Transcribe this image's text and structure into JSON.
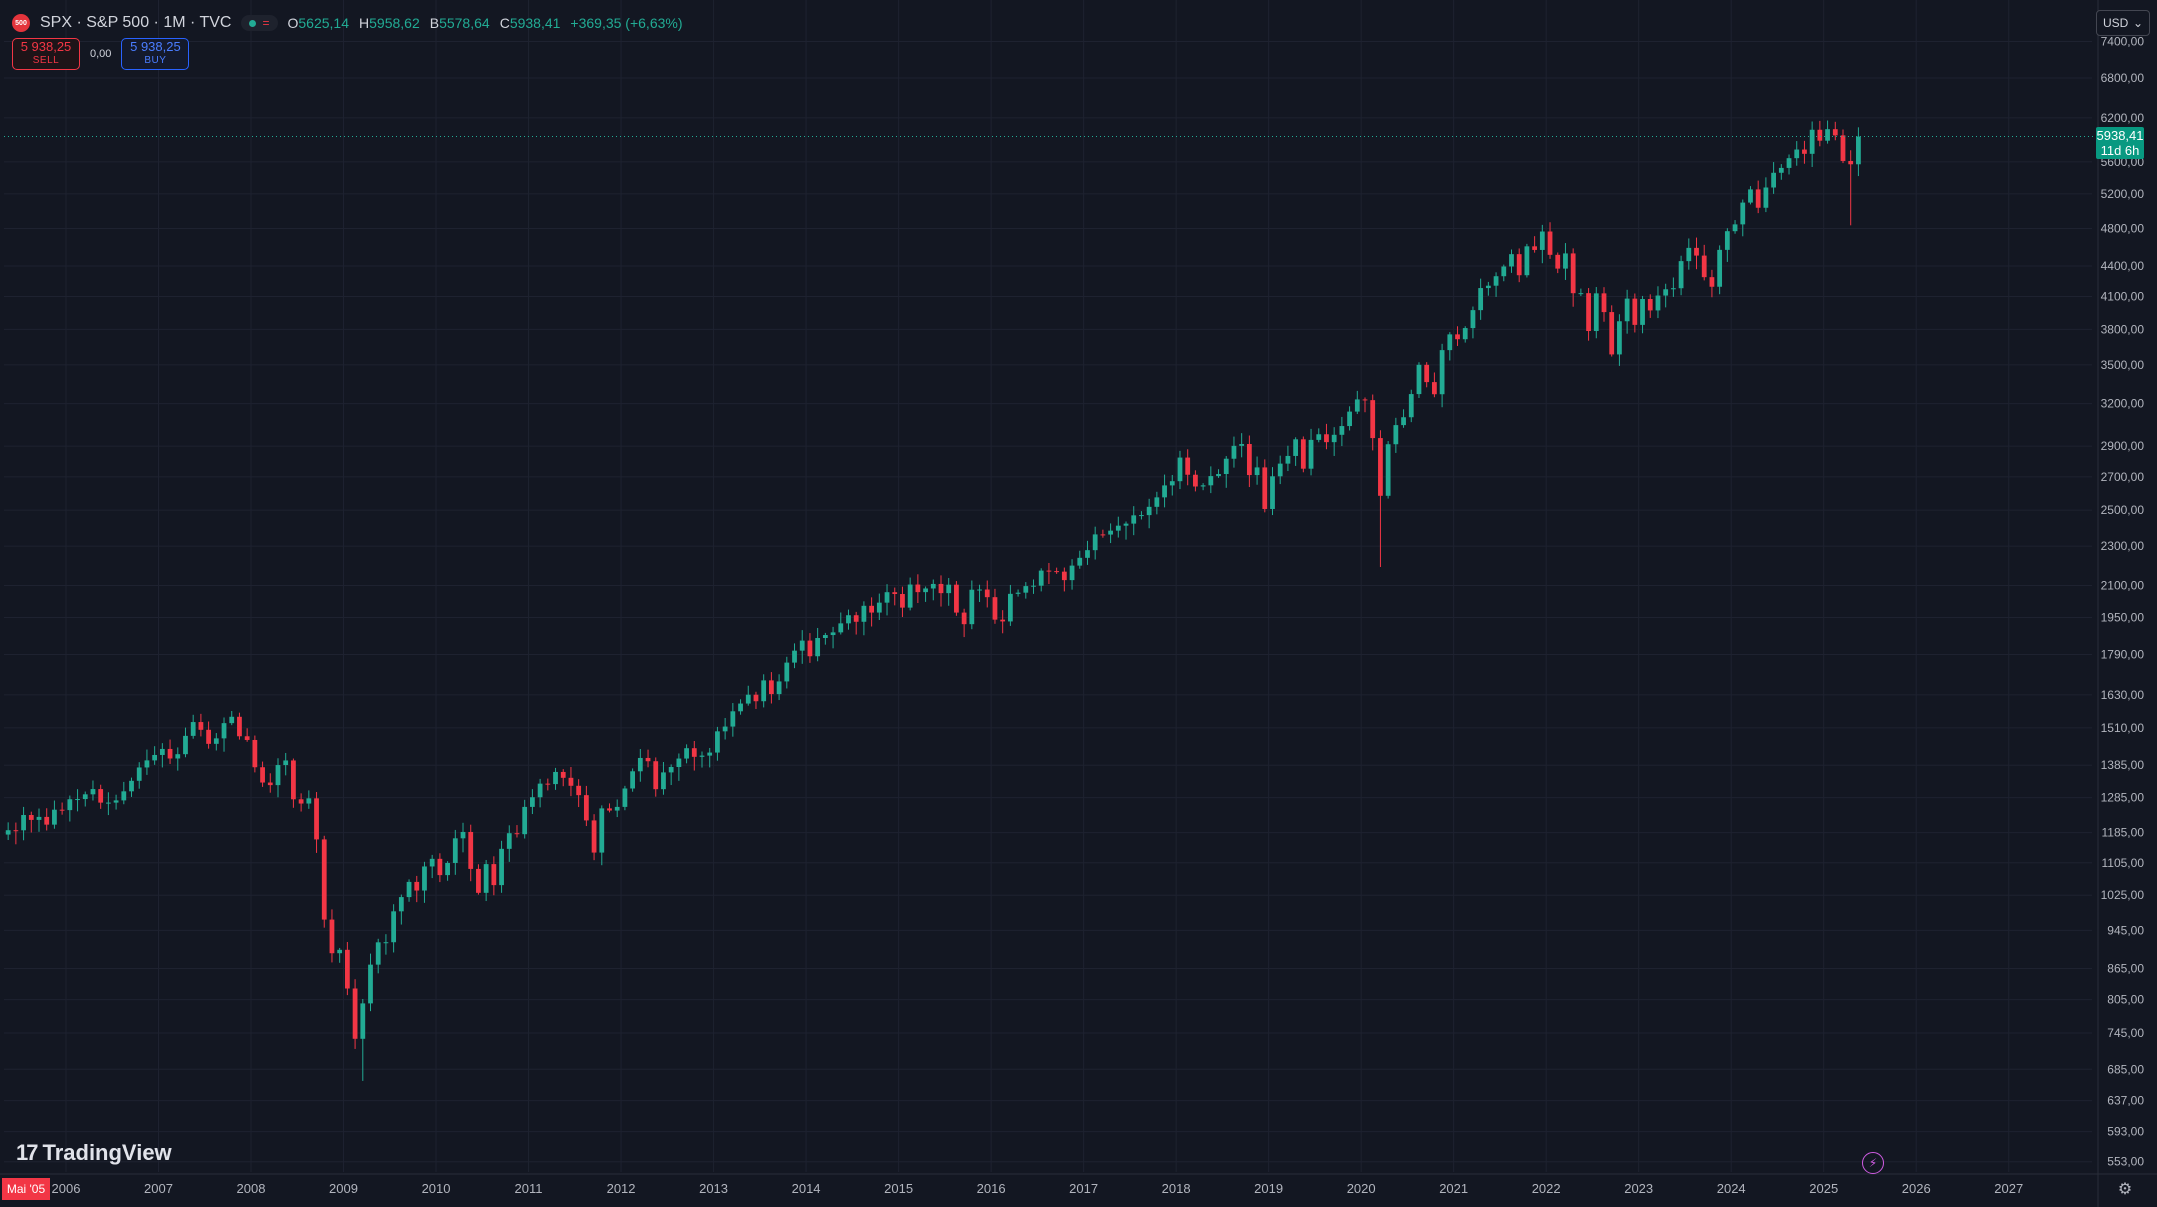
{
  "header": {
    "symbol_badge": "500",
    "title": "SPX · S&P 500 · 1M · TVC",
    "ohlc": [
      {
        "key": "O",
        "value": "5625,14"
      },
      {
        "key": "H",
        "value": "5958,62"
      },
      {
        "key": "B",
        "value": "5578,64"
      },
      {
        "key": "C",
        "value": "5938,41"
      }
    ],
    "change": "+369,35 (+6,63%)"
  },
  "trade": {
    "sell_price": "5 938,25",
    "sell_label": "SELL",
    "spread": "0,00",
    "buy_price": "5 938,25",
    "buy_label": "BUY"
  },
  "currency_button": "USD",
  "last_price_label": {
    "price": "5938,41",
    "countdown": "11d 6h"
  },
  "first_date_label": "Mai '05",
  "brand": "TradingView",
  "colors": {
    "background": "#131722",
    "up": "#22ab94",
    "down": "#f23645",
    "grid": "#1e2230",
    "axis_text": "#b2b5be",
    "price_line": "#22ab94"
  },
  "chart_data": {
    "type": "candlestick",
    "interval": "1M",
    "y_scale": "log",
    "ylim": [
      540,
      7600
    ],
    "x_range": [
      2005.33,
      2027.9
    ],
    "y_ticks": [
      "553,00",
      "593,00",
      "637,00",
      "685,00",
      "745,00",
      "805,00",
      "865,00",
      "945,00",
      "1025,00",
      "1105,00",
      "1185,00",
      "1285,00",
      "1385,00",
      "1510,00",
      "1630,00",
      "1790,00",
      "1950,00",
      "2100,00",
      "2300,00",
      "2500,00",
      "2700,00",
      "2900,00",
      "3200,00",
      "3500,00",
      "3800,00",
      "4100,00",
      "4400,00",
      "4800,00",
      "5200,00",
      "5600,00",
      "6200,00",
      "6800,00",
      "7400,00"
    ],
    "x_ticks": [
      "2006",
      "2007",
      "2008",
      "2009",
      "2010",
      "2011",
      "2012",
      "2013",
      "2014",
      "2015",
      "2016",
      "2017",
      "2018",
      "2019",
      "2020",
      "2021",
      "2022",
      "2023",
      "2024",
      "2025",
      "2026",
      "2027"
    ],
    "last_close": 5938.41,
    "monthly_closes": [
      {
        "date": "2005-05",
        "close": 1191.5
      },
      {
        "date": "2005-06",
        "close": 1191.3
      },
      {
        "date": "2005-07",
        "close": 1234.2
      },
      {
        "date": "2005-08",
        "close": 1220.3
      },
      {
        "date": "2005-09",
        "close": 1228.8
      },
      {
        "date": "2005-10",
        "close": 1207.0
      },
      {
        "date": "2005-11",
        "close": 1249.5
      },
      {
        "date": "2005-12",
        "close": 1248.3
      },
      {
        "date": "2006-01",
        "close": 1280.1
      },
      {
        "date": "2006-02",
        "close": 1280.7
      },
      {
        "date": "2006-03",
        "close": 1294.8
      },
      {
        "date": "2006-04",
        "close": 1310.6
      },
      {
        "date": "2006-05",
        "close": 1270.1
      },
      {
        "date": "2006-06",
        "close": 1270.2
      },
      {
        "date": "2006-07",
        "close": 1276.7
      },
      {
        "date": "2006-08",
        "close": 1303.8
      },
      {
        "date": "2006-09",
        "close": 1335.9
      },
      {
        "date": "2006-10",
        "close": 1377.9
      },
      {
        "date": "2006-11",
        "close": 1400.6
      },
      {
        "date": "2006-12",
        "close": 1418.3
      },
      {
        "date": "2007-01",
        "close": 1438.2
      },
      {
        "date": "2007-02",
        "close": 1406.8
      },
      {
        "date": "2007-03",
        "close": 1420.9
      },
      {
        "date": "2007-04",
        "close": 1482.4
      },
      {
        "date": "2007-05",
        "close": 1530.6
      },
      {
        "date": "2007-06",
        "close": 1503.4
      },
      {
        "date": "2007-07",
        "close": 1455.3
      },
      {
        "date": "2007-08",
        "close": 1473.9
      },
      {
        "date": "2007-09",
        "close": 1526.8
      },
      {
        "date": "2007-10",
        "close": 1549.4
      },
      {
        "date": "2007-11",
        "close": 1481.1
      },
      {
        "date": "2007-12",
        "close": 1468.4
      },
      {
        "date": "2008-01",
        "close": 1378.6
      },
      {
        "date": "2008-02",
        "close": 1330.6
      },
      {
        "date": "2008-03",
        "close": 1322.7
      },
      {
        "date": "2008-04",
        "close": 1385.6
      },
      {
        "date": "2008-05",
        "close": 1400.4
      },
      {
        "date": "2008-06",
        "close": 1280.0
      },
      {
        "date": "2008-07",
        "close": 1267.4
      },
      {
        "date": "2008-08",
        "close": 1282.8
      },
      {
        "date": "2008-09",
        "close": 1166.4
      },
      {
        "date": "2008-10",
        "close": 968.8
      },
      {
        "date": "2008-11",
        "close": 896.2
      },
      {
        "date": "2008-12",
        "close": 903.3
      },
      {
        "date": "2009-01",
        "close": 825.9
      },
      {
        "date": "2009-02",
        "close": 735.1
      },
      {
        "date": "2009-03",
        "close": 797.9
      },
      {
        "date": "2009-04",
        "close": 872.8
      },
      {
        "date": "2009-05",
        "close": 919.1
      },
      {
        "date": "2009-06",
        "close": 919.3
      },
      {
        "date": "2009-07",
        "close": 987.5
      },
      {
        "date": "2009-08",
        "close": 1020.6
      },
      {
        "date": "2009-09",
        "close": 1057.1
      },
      {
        "date": "2009-10",
        "close": 1036.2
      },
      {
        "date": "2009-11",
        "close": 1095.6
      },
      {
        "date": "2009-12",
        "close": 1115.1
      },
      {
        "date": "2010-01",
        "close": 1073.9
      },
      {
        "date": "2010-02",
        "close": 1104.5
      },
      {
        "date": "2010-03",
        "close": 1169.4
      },
      {
        "date": "2010-04",
        "close": 1186.7
      },
      {
        "date": "2010-05",
        "close": 1089.4
      },
      {
        "date": "2010-06",
        "close": 1030.7
      },
      {
        "date": "2010-07",
        "close": 1101.6
      },
      {
        "date": "2010-08",
        "close": 1049.3
      },
      {
        "date": "2010-09",
        "close": 1141.2
      },
      {
        "date": "2010-10",
        "close": 1183.3
      },
      {
        "date": "2010-11",
        "close": 1180.6
      },
      {
        "date": "2010-12",
        "close": 1257.6
      },
      {
        "date": "2011-01",
        "close": 1286.1
      },
      {
        "date": "2011-02",
        "close": 1327.2
      },
      {
        "date": "2011-03",
        "close": 1325.8
      },
      {
        "date": "2011-04",
        "close": 1363.6
      },
      {
        "date": "2011-05",
        "close": 1345.2
      },
      {
        "date": "2011-06",
        "close": 1320.6
      },
      {
        "date": "2011-07",
        "close": 1292.3
      },
      {
        "date": "2011-08",
        "close": 1218.9
      },
      {
        "date": "2011-09",
        "close": 1131.4
      },
      {
        "date": "2011-10",
        "close": 1253.3
      },
      {
        "date": "2011-11",
        "close": 1247.0
      },
      {
        "date": "2011-12",
        "close": 1257.6
      },
      {
        "date": "2012-01",
        "close": 1312.4
      },
      {
        "date": "2012-02",
        "close": 1365.7
      },
      {
        "date": "2012-03",
        "close": 1408.5
      },
      {
        "date": "2012-04",
        "close": 1397.9
      },
      {
        "date": "2012-05",
        "close": 1310.3
      },
      {
        "date": "2012-06",
        "close": 1362.2
      },
      {
        "date": "2012-07",
        "close": 1379.3
      },
      {
        "date": "2012-08",
        "close": 1406.6
      },
      {
        "date": "2012-09",
        "close": 1440.7
      },
      {
        "date": "2012-10",
        "close": 1412.2
      },
      {
        "date": "2012-11",
        "close": 1416.2
      },
      {
        "date": "2012-12",
        "close": 1426.2
      },
      {
        "date": "2013-01",
        "close": 1498.1
      },
      {
        "date": "2013-02",
        "close": 1514.7
      },
      {
        "date": "2013-03",
        "close": 1569.2
      },
      {
        "date": "2013-04",
        "close": 1597.6
      },
      {
        "date": "2013-05",
        "close": 1630.7
      },
      {
        "date": "2013-06",
        "close": 1606.3
      },
      {
        "date": "2013-07",
        "close": 1685.7
      },
      {
        "date": "2013-08",
        "close": 1633.0
      },
      {
        "date": "2013-09",
        "close": 1681.6
      },
      {
        "date": "2013-10",
        "close": 1756.5
      },
      {
        "date": "2013-11",
        "close": 1805.8
      },
      {
        "date": "2013-12",
        "close": 1848.4
      },
      {
        "date": "2014-01",
        "close": 1782.6
      },
      {
        "date": "2014-02",
        "close": 1859.5
      },
      {
        "date": "2014-03",
        "close": 1872.3
      },
      {
        "date": "2014-04",
        "close": 1883.9
      },
      {
        "date": "2014-05",
        "close": 1923.6
      },
      {
        "date": "2014-06",
        "close": 1960.2
      },
      {
        "date": "2014-07",
        "close": 1930.7
      },
      {
        "date": "2014-08",
        "close": 2003.4
      },
      {
        "date": "2014-09",
        "close": 1972.3
      },
      {
        "date": "2014-10",
        "close": 2018.1
      },
      {
        "date": "2014-11",
        "close": 2067.6
      },
      {
        "date": "2014-12",
        "close": 2058.9
      },
      {
        "date": "2015-01",
        "close": 1995.0
      },
      {
        "date": "2015-02",
        "close": 2104.5
      },
      {
        "date": "2015-03",
        "close": 2067.9
      },
      {
        "date": "2015-04",
        "close": 2085.5
      },
      {
        "date": "2015-05",
        "close": 2107.4
      },
      {
        "date": "2015-06",
        "close": 2063.1
      },
      {
        "date": "2015-07",
        "close": 2103.8
      },
      {
        "date": "2015-08",
        "close": 1972.2
      },
      {
        "date": "2015-09",
        "close": 1920.0
      },
      {
        "date": "2015-10",
        "close": 2079.4
      },
      {
        "date": "2015-11",
        "close": 2080.4
      },
      {
        "date": "2015-12",
        "close": 2043.9
      },
      {
        "date": "2016-01",
        "close": 1940.2
      },
      {
        "date": "2016-02",
        "close": 1932.2
      },
      {
        "date": "2016-03",
        "close": 2059.7
      },
      {
        "date": "2016-04",
        "close": 2065.3
      },
      {
        "date": "2016-05",
        "close": 2096.9
      },
      {
        "date": "2016-06",
        "close": 2098.9
      },
      {
        "date": "2016-07",
        "close": 2173.6
      },
      {
        "date": "2016-08",
        "close": 2170.9
      },
      {
        "date": "2016-09",
        "close": 2168.3
      },
      {
        "date": "2016-10",
        "close": 2126.2
      },
      {
        "date": "2016-11",
        "close": 2198.8
      },
      {
        "date": "2016-12",
        "close": 2238.8
      },
      {
        "date": "2017-01",
        "close": 2278.9
      },
      {
        "date": "2017-02",
        "close": 2363.6
      },
      {
        "date": "2017-03",
        "close": 2362.7
      },
      {
        "date": "2017-04",
        "close": 2384.2
      },
      {
        "date": "2017-05",
        "close": 2411.8
      },
      {
        "date": "2017-06",
        "close": 2423.4
      },
      {
        "date": "2017-07",
        "close": 2470.3
      },
      {
        "date": "2017-08",
        "close": 2471.7
      },
      {
        "date": "2017-09",
        "close": 2519.4
      },
      {
        "date": "2017-10",
        "close": 2575.3
      },
      {
        "date": "2017-11",
        "close": 2647.6
      },
      {
        "date": "2017-12",
        "close": 2673.6
      },
      {
        "date": "2018-01",
        "close": 2823.8
      },
      {
        "date": "2018-02",
        "close": 2713.8
      },
      {
        "date": "2018-03",
        "close": 2640.9
      },
      {
        "date": "2018-04",
        "close": 2648.1
      },
      {
        "date": "2018-05",
        "close": 2705.3
      },
      {
        "date": "2018-06",
        "close": 2718.4
      },
      {
        "date": "2018-07",
        "close": 2816.3
      },
      {
        "date": "2018-08",
        "close": 2901.5
      },
      {
        "date": "2018-09",
        "close": 2913.9
      },
      {
        "date": "2018-10",
        "close": 2711.7
      },
      {
        "date": "2018-11",
        "close": 2760.2
      },
      {
        "date": "2018-12",
        "close": 2506.9
      },
      {
        "date": "2019-01",
        "close": 2704.1
      },
      {
        "date": "2019-02",
        "close": 2784.5
      },
      {
        "date": "2019-03",
        "close": 2834.4
      },
      {
        "date": "2019-04",
        "close": 2945.8
      },
      {
        "date": "2019-05",
        "close": 2752.1
      },
      {
        "date": "2019-06",
        "close": 2941.8
      },
      {
        "date": "2019-07",
        "close": 2980.4
      },
      {
        "date": "2019-08",
        "close": 2926.5
      },
      {
        "date": "2019-09",
        "close": 2976.7
      },
      {
        "date": "2019-10",
        "close": 3037.6
      },
      {
        "date": "2019-11",
        "close": 3141.0
      },
      {
        "date": "2019-12",
        "close": 3230.8
      },
      {
        "date": "2020-01",
        "close": 3225.5
      },
      {
        "date": "2020-02",
        "close": 2954.2
      },
      {
        "date": "2020-03",
        "close": 2584.6
      },
      {
        "date": "2020-04",
        "close": 2912.4
      },
      {
        "date": "2020-05",
        "close": 3044.3
      },
      {
        "date": "2020-06",
        "close": 3100.3
      },
      {
        "date": "2020-07",
        "close": 3271.1
      },
      {
        "date": "2020-08",
        "close": 3500.3
      },
      {
        "date": "2020-09",
        "close": 3363.0
      },
      {
        "date": "2020-10",
        "close": 3269.9
      },
      {
        "date": "2020-11",
        "close": 3621.6
      },
      {
        "date": "2020-12",
        "close": 3756.1
      },
      {
        "date": "2021-01",
        "close": 3714.2
      },
      {
        "date": "2021-02",
        "close": 3811.2
      },
      {
        "date": "2021-03",
        "close": 3972.9
      },
      {
        "date": "2021-04",
        "close": 4181.2
      },
      {
        "date": "2021-05",
        "close": 4204.1
      },
      {
        "date": "2021-06",
        "close": 4297.5
      },
      {
        "date": "2021-07",
        "close": 4395.3
      },
      {
        "date": "2021-08",
        "close": 4522.7
      },
      {
        "date": "2021-09",
        "close": 4307.5
      },
      {
        "date": "2021-10",
        "close": 4605.4
      },
      {
        "date": "2021-11",
        "close": 4567.0
      },
      {
        "date": "2021-12",
        "close": 4766.2
      },
      {
        "date": "2022-01",
        "close": 4515.6
      },
      {
        "date": "2022-02",
        "close": 4373.9
      },
      {
        "date": "2022-03",
        "close": 4530.4
      },
      {
        "date": "2022-04",
        "close": 4131.9
      },
      {
        "date": "2022-05",
        "close": 4132.2
      },
      {
        "date": "2022-06",
        "close": 3785.4
      },
      {
        "date": "2022-07",
        "close": 4130.3
      },
      {
        "date": "2022-08",
        "close": 3955.0
      },
      {
        "date": "2022-09",
        "close": 3585.6
      },
      {
        "date": "2022-10",
        "close": 3871.9
      },
      {
        "date": "2022-11",
        "close": 4080.1
      },
      {
        "date": "2022-12",
        "close": 3839.5
      },
      {
        "date": "2023-01",
        "close": 4076.6
      },
      {
        "date": "2023-02",
        "close": 3970.2
      },
      {
        "date": "2023-03",
        "close": 4109.3
      },
      {
        "date": "2023-04",
        "close": 4169.5
      },
      {
        "date": "2023-05",
        "close": 4179.8
      },
      {
        "date": "2023-06",
        "close": 4450.4
      },
      {
        "date": "2023-07",
        "close": 4588.9
      },
      {
        "date": "2023-08",
        "close": 4507.7
      },
      {
        "date": "2023-09",
        "close": 4288.1
      },
      {
        "date": "2023-10",
        "close": 4193.8
      },
      {
        "date": "2023-11",
        "close": 4567.8
      },
      {
        "date": "2023-12",
        "close": 4769.8
      },
      {
        "date": "2024-01",
        "close": 4845.7
      },
      {
        "date": "2024-02",
        "close": 5096.3
      },
      {
        "date": "2024-03",
        "close": 5254.4
      },
      {
        "date": "2024-04",
        "close": 5035.7
      },
      {
        "date": "2024-05",
        "close": 5277.5
      },
      {
        "date": "2024-06",
        "close": 5460.5
      },
      {
        "date": "2024-07",
        "close": 5522.3
      },
      {
        "date": "2024-08",
        "close": 5648.4
      },
      {
        "date": "2024-09",
        "close": 5762.5
      },
      {
        "date": "2024-10",
        "close": 5705.5
      },
      {
        "date": "2024-11",
        "close": 6032.4
      },
      {
        "date": "2024-12",
        "close": 5881.6
      },
      {
        "date": "2025-01",
        "close": 6040.5
      },
      {
        "date": "2025-02",
        "close": 5954.5
      },
      {
        "date": "2025-03",
        "close": 5611.9
      },
      {
        "date": "2025-04",
        "close": 5569.1
      },
      {
        "date": "2025-05",
        "close": 5938.41
      }
    ],
    "notable_lows": [
      {
        "date": "2009-03",
        "low": 666.8
      },
      {
        "date": "2020-03",
        "low": 2191.9
      },
      {
        "date": "2022-10",
        "low": 3491.6
      },
      {
        "date": "2025-04",
        "low": 4835.0
      }
    ]
  }
}
